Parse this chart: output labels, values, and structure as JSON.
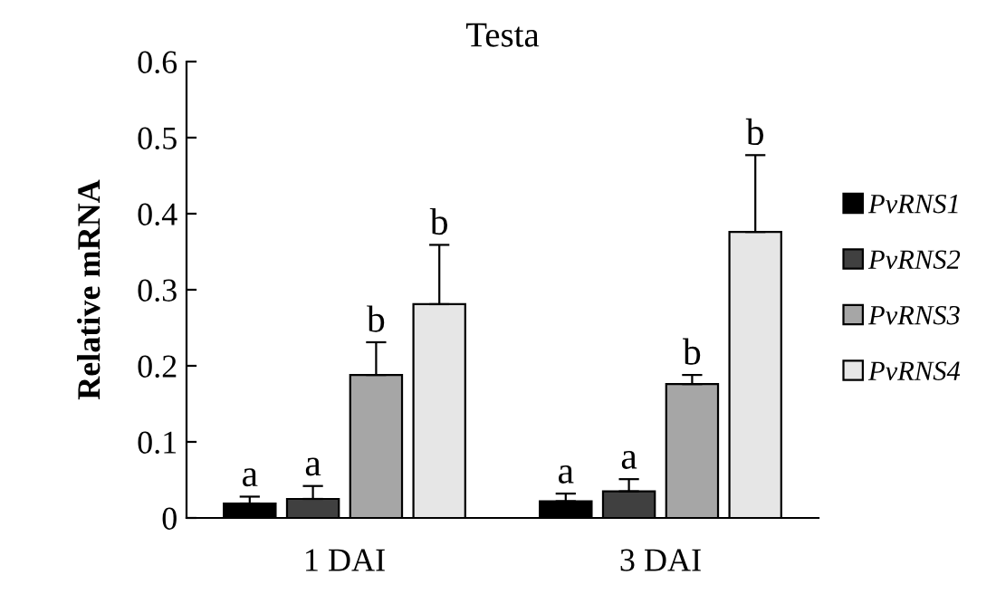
{
  "chart_data": {
    "type": "bar",
    "title": "Testa",
    "ylabel": "Relative mRNA",
    "categories": [
      "1 DAI",
      "3 DAI"
    ],
    "series": [
      {
        "name": "PvRNS1",
        "color": "#000000",
        "values": [
          0.019,
          0.022
        ],
        "errors": [
          0.009,
          0.01
        ],
        "value_labels": [
          "a",
          "a"
        ]
      },
      {
        "name": "PvRNS2",
        "color": "#404040",
        "values": [
          0.025,
          0.035
        ],
        "errors": [
          0.017,
          0.016
        ],
        "value_labels": [
          "a",
          "a"
        ]
      },
      {
        "name": "PvRNS3",
        "color": "#a6a6a6",
        "values": [
          0.188,
          0.176
        ],
        "errors": [
          0.043,
          0.012
        ],
        "value_labels": [
          "b",
          "b"
        ]
      },
      {
        "name": "PvRNS4",
        "color": "#e6e6e6",
        "values": [
          0.281,
          0.376
        ],
        "errors": [
          0.078,
          0.101
        ],
        "value_labels": [
          "b",
          "b"
        ]
      }
    ],
    "ylim": [
      0,
      0.6
    ],
    "yticks": [
      {
        "value": 0,
        "label": "0"
      },
      0.1,
      0.2,
      0.3,
      0.4,
      0.5,
      0.6
    ],
    "grid": false,
    "legend": "right"
  }
}
